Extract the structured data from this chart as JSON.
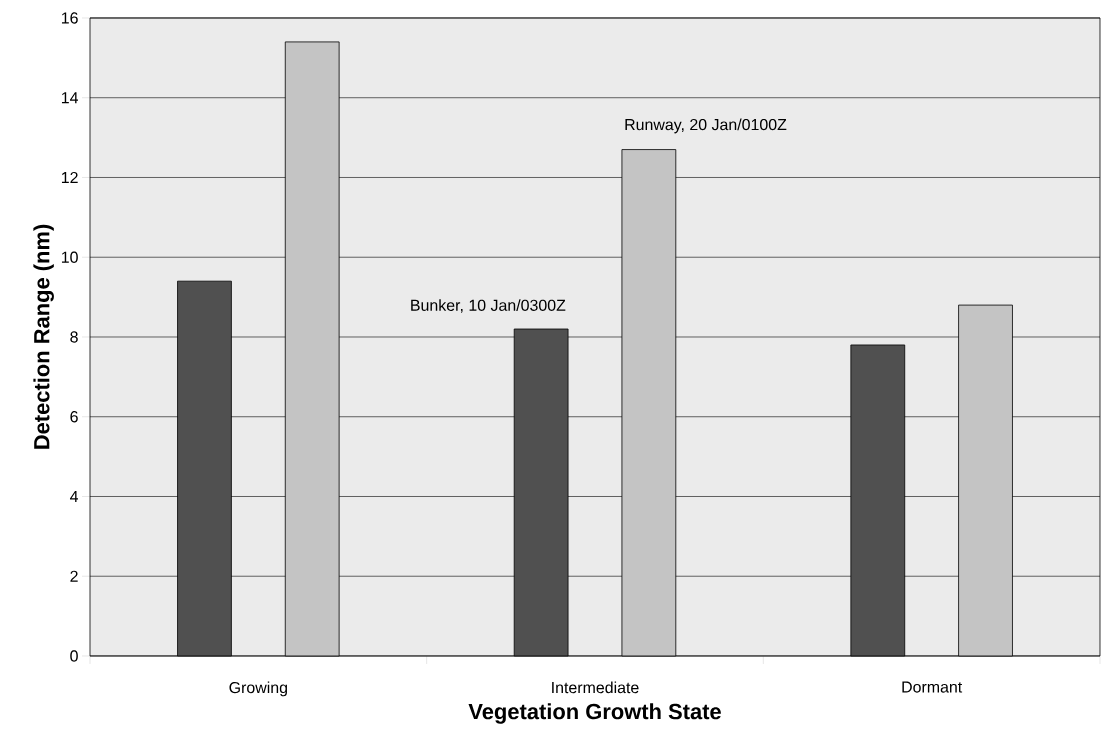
{
  "chart_data": {
    "type": "bar",
    "xlabel": "Vegetation Growth State",
    "ylabel": "Detection Range (nm)",
    "categories": [
      "Growing",
      "Intermediate",
      "Dormant"
    ],
    "series": [
      {
        "name": "Bunker, 10 Jan/0300Z",
        "color": "#505050",
        "values": [
          9.4,
          8.2,
          7.8
        ]
      },
      {
        "name": "Runway, 20 Jan/0100Z",
        "color": "#c4c4c4",
        "values": [
          15.4,
          12.7,
          8.8
        ]
      }
    ],
    "ylim": [
      0,
      16
    ],
    "yticks": [
      0,
      2,
      4,
      6,
      8,
      10,
      12,
      14,
      16
    ],
    "grid": "y"
  }
}
